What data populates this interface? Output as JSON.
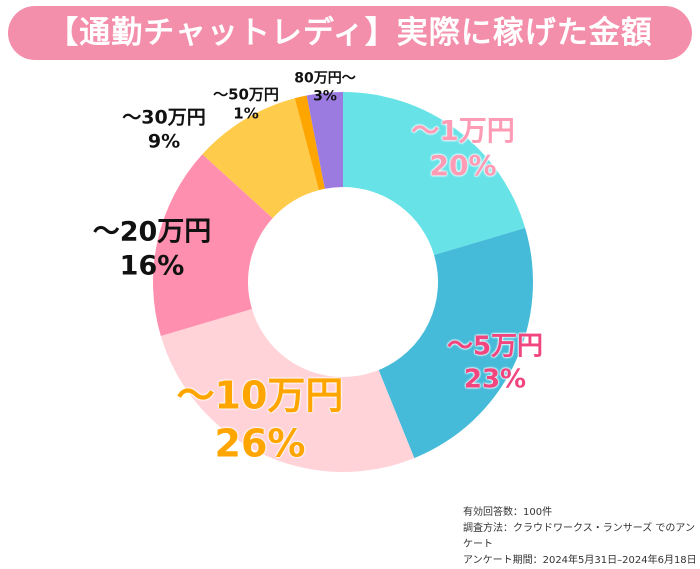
{
  "title": "【通勤チャットレディ】実際に稼げた金額",
  "chart_data": {
    "type": "pie",
    "donut": true,
    "title": "【通勤チャットレディ】実際に稼げた金額",
    "categories": [
      "～1万円",
      "～5万円",
      "～10万円",
      "～20万円",
      "～30万円",
      "～50万円",
      "80万円～"
    ],
    "values": [
      20,
      23,
      26,
      16,
      9,
      1,
      3
    ],
    "labels": [
      "20%",
      "23%",
      "26%",
      "16%",
      "9%",
      "1%",
      "3%"
    ],
    "colors": [
      "#67E3E8",
      "#45BBD9",
      "#FFD3D8",
      "#FF8FAE",
      "#FFCB4A",
      "#FFA500",
      "#9B7BE0"
    ]
  },
  "notes": [
    "有効回答数：100件",
    "調査方法：クラウドワークス・ランサーズ でのアンケート",
    "アンケート期間：2024年5月31日–2024年6月18日"
  ]
}
